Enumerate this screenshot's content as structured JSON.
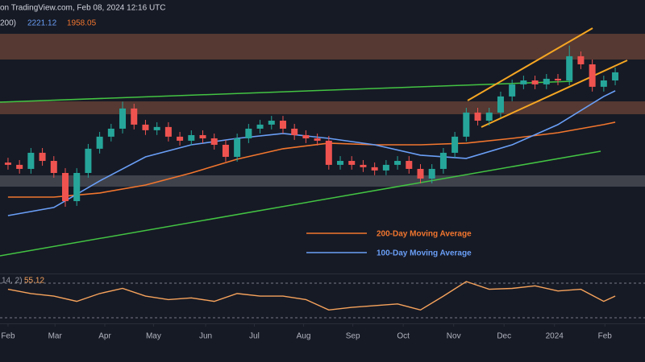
{
  "chart_data": [
    {
      "type": "candlestick",
      "header": "on TradingView.com, Feb 08, 2024 12:16 UTC",
      "indicator_label": "200)",
      "x": [
        0,
        1,
        2,
        3,
        4,
        5,
        6,
        7,
        8,
        9,
        10,
        11,
        12,
        13,
        14,
        15,
        16,
        17,
        18,
        19,
        20,
        21,
        22,
        23,
        24,
        25,
        26,
        27,
        28,
        29,
        30,
        31,
        32,
        33,
        34,
        35,
        36,
        37,
        38,
        39,
        40,
        41,
        42,
        43,
        44,
        45,
        46,
        47,
        48,
        49,
        50,
        51,
        52,
        53
      ],
      "open": [
        1620,
        1601,
        1567,
        1702,
        1634,
        1533,
        1297,
        1533,
        1736,
        1837,
        1904,
        2073,
        1938,
        1891,
        1918,
        1837,
        1803,
        1850,
        1823,
        1769,
        1668,
        1823,
        1904,
        1938,
        1971,
        1904,
        1850,
        1823,
        1803,
        1601,
        1634,
        1601,
        1581,
        1554,
        1601,
        1634,
        1567,
        1486,
        1567,
        1702,
        1837,
        2039,
        1971,
        2039,
        2174,
        2275,
        2308,
        2275,
        2322,
        2308,
        2511,
        2443,
        2255,
        2308
      ],
      "high": [
        1660,
        1641,
        1742,
        1742,
        1674,
        1573,
        1573,
        1776,
        1877,
        1944,
        2130,
        2113,
        1978,
        1958,
        1958,
        1877,
        1890,
        1890,
        1863,
        1809,
        1863,
        1944,
        1978,
        2011,
        2011,
        1944,
        1890,
        1863,
        1843,
        1674,
        1674,
        1641,
        1621,
        1641,
        1674,
        1674,
        1607,
        1607,
        1742,
        1877,
        2079,
        2079,
        2079,
        2214,
        2315,
        2348,
        2348,
        2362,
        2362,
        2600,
        2551,
        2483,
        2348,
        2416
      ],
      "low": [
        1561,
        1527,
        1527,
        1594,
        1493,
        1250,
        1257,
        1493,
        1696,
        1797,
        1864,
        1898,
        1851,
        1851,
        1797,
        1763,
        1763,
        1783,
        1729,
        1628,
        1628,
        1783,
        1864,
        1898,
        1864,
        1810,
        1783,
        1763,
        1561,
        1561,
        1561,
        1541,
        1514,
        1514,
        1561,
        1527,
        1446,
        1446,
        1527,
        1662,
        1797,
        1931,
        1931,
        1999,
        2134,
        2235,
        2235,
        2235,
        2268,
        2268,
        2403,
        2215,
        2215,
        2268
      ],
      "close": [
        1601,
        1567,
        1702,
        1634,
        1533,
        1297,
        1533,
        1736,
        1837,
        1904,
        2073,
        1938,
        1891,
        1918,
        1837,
        1803,
        1850,
        1823,
        1769,
        1668,
        1823,
        1904,
        1938,
        1971,
        1904,
        1850,
        1823,
        1803,
        1601,
        1634,
        1601,
        1581,
        1554,
        1601,
        1634,
        1567,
        1486,
        1567,
        1702,
        1837,
        2039,
        1971,
        2039,
        2174,
        2275,
        2308,
        2275,
        2322,
        2308,
        2511,
        2443,
        2255,
        2308,
        2376
      ],
      "up_color": "#26a69a",
      "down_color": "#ef5350",
      "series": [
        {
          "name": "200-Day Moving Average",
          "color": "#f2762e",
          "x": [
            0,
            4,
            8,
            12,
            16,
            20,
            24,
            28,
            32,
            36,
            40,
            44,
            48,
            52,
            53
          ],
          "values": [
            1331,
            1331,
            1365,
            1432,
            1533,
            1648,
            1736,
            1783,
            1769,
            1769,
            1783,
            1823,
            1870,
            1938,
            1958.05
          ]
        },
        {
          "name": "100-Day Moving Average",
          "color": "#6a9ff7",
          "x": [
            0,
            4,
            8,
            12,
            16,
            20,
            24,
            28,
            32,
            36,
            40,
            44,
            48,
            52,
            53
          ],
          "values": [
            1176,
            1244,
            1466,
            1668,
            1769,
            1823,
            1864,
            1823,
            1769,
            1682,
            1655,
            1769,
            1938,
            2174,
            2221.12
          ]
        }
      ],
      "xlim": [
        -0.7,
        55.6
      ],
      "ylim": [
        758,
        2982
      ],
      "xticks": [
        {
          "value": 0,
          "label": "Feb"
        },
        {
          "value": 4.1,
          "label": "Mar"
        },
        {
          "value": 8.45,
          "label": "Apr"
        },
        {
          "value": 12.7,
          "label": "May"
        },
        {
          "value": 17.25,
          "label": "Jun"
        },
        {
          "value": 21.5,
          "label": "Jul"
        },
        {
          "value": 25.8,
          "label": "Aug"
        },
        {
          "value": 30.1,
          "label": "Sep"
        },
        {
          "value": 34.5,
          "label": "Oct"
        },
        {
          "value": 38.9,
          "label": "Nov"
        },
        {
          "value": 43.3,
          "label": "Dec"
        },
        {
          "value": 47.7,
          "label": "2024"
        },
        {
          "value": 52.1,
          "label": "Feb"
        }
      ]
    },
    {
      "type": "line",
      "label": "14, 2)",
      "series": [
        {
          "color": "#f7a35c",
          "x": [
            0,
            2,
            4,
            6,
            8,
            10,
            12,
            14,
            16,
            18,
            20,
            22,
            24,
            26,
            28,
            30,
            32,
            34,
            36,
            38,
            40,
            42,
            44,
            46,
            48,
            50,
            52,
            53
          ],
          "values": [
            63,
            58,
            55,
            49,
            58,
            64,
            55,
            51,
            53,
            49,
            58,
            55,
            55,
            51,
            39,
            42,
            44,
            46,
            39,
            55,
            72,
            63,
            64,
            67,
            61,
            63,
            49,
            55.12
          ]
        }
      ],
      "ylim": [
        0,
        100
      ]
    }
  ]
}
